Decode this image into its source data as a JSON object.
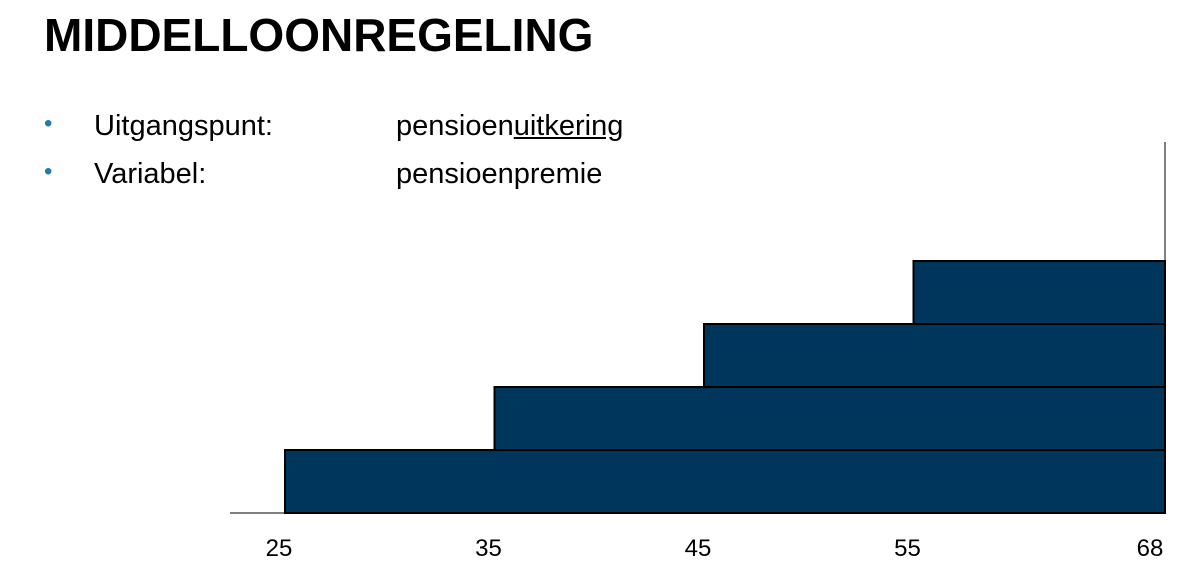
{
  "title": "MIDDELLOONREGELING",
  "bullets": [
    {
      "label": "Uitgangspunt:",
      "value": [
        "pensioen",
        "uitkering"
      ]
    },
    {
      "label": "Variabel:",
      "value": [
        "pensioenpremie"
      ]
    }
  ],
  "chart_data": {
    "type": "step-bar",
    "color": "#01365c",
    "xticks": [
      25,
      35,
      45,
      55,
      68
    ],
    "bars": [
      {
        "start": 25,
        "end": 68
      },
      {
        "start": 35,
        "end": 68
      },
      {
        "start": 45,
        "end": 68
      },
      {
        "start": 55,
        "end": 68
      }
    ]
  }
}
